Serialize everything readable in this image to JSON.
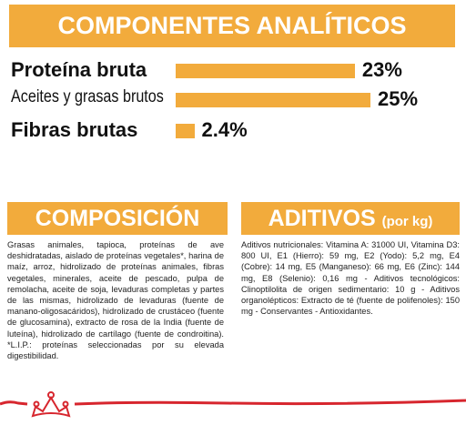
{
  "header": {
    "title": "COMPONENTES ANALÍTICOS"
  },
  "chart_data": {
    "type": "bar",
    "categories": [
      "Proteína bruta",
      "Aceites y grasas brutos",
      "Fibras brutas"
    ],
    "values": [
      23,
      25,
      2.4
    ],
    "value_labels": [
      "23%",
      "25%",
      "2.4%"
    ],
    "color": "#f2ab3c"
  },
  "composition": {
    "title": "COMPOSICIÓN",
    "text": "Grasas animales, tapioca, proteínas de ave deshidratadas, aislado de proteínas vegetales*, harina de maíz, arroz, hidrolizado de proteínas animales, fibras vegetales, minerales, aceite de pescado, pulpa de remolacha, aceite de soja, levaduras completas y partes de las mismas, hidrolizado de levaduras (fuente de manano-oligosacáridos), hidrolizado de crustáceo (fuente de glucosamina), extracto de rosa de la India (fuente de luteína), hidrolizado de cartílago (fuente de condroitina). *L.I.P.: proteínas seleccionadas por su elevada digestibilidad."
  },
  "additives": {
    "title": "ADITIVOS",
    "subtitle": "(por kg)",
    "text": "Aditivos nutricionales: Vitamina A: 31000 UI, Vitamina D3: 800 UI, E1 (Hierro): 59 mg, E2 (Yodo): 5,2 mg, E4 (Cobre): 14 mg, E5 (Manganeso): 66 mg, E6 (Zinc): 144 mg, E8 (Selenio): 0,16 mg - Aditivos tecnológicos: Clinoptilolita de origen sedimentario: 10 g - Aditivos organolépticos: Extracto de té (fuente de polifenoles): 150 mg - Conservantes - Antioxidantes."
  }
}
